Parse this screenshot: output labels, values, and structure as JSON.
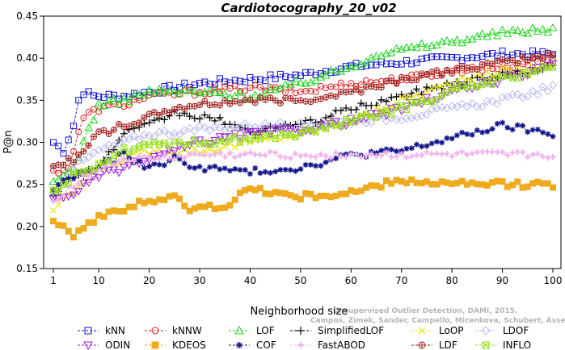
{
  "chart_data": {
    "type": "line",
    "title": "Cardiotocography_20_v02",
    "xlabel": "Neighborhood size",
    "ylabel": "P@n",
    "xlim": [
      1,
      100
    ],
    "ylim": [
      0.15,
      0.45
    ],
    "xticks": [
      1,
      10,
      20,
      30,
      40,
      50,
      60,
      70,
      80,
      90,
      100
    ],
    "yticks": [
      0.15,
      0.2,
      0.25,
      0.3,
      0.35,
      0.4,
      0.45
    ],
    "grid": false,
    "legend_position": "bottom",
    "watermark_lines": [
      "Unsupervised Outlier Detection, DAMI, 2015.",
      "Campos, Zimek, Sander, Campello, Micenkova, Schubert, Assent, Houle"
    ],
    "series": [
      {
        "name": "kNN",
        "color": "#1414d2",
        "marker": "square",
        "anchors": [
          [
            1,
            0.3
          ],
          [
            3,
            0.29
          ],
          [
            5,
            0.32
          ],
          [
            6,
            0.35
          ],
          [
            7,
            0.36
          ],
          [
            9,
            0.355
          ],
          [
            15,
            0.355
          ],
          [
            20,
            0.36
          ],
          [
            30,
            0.37
          ],
          [
            40,
            0.375
          ],
          [
            50,
            0.38
          ],
          [
            60,
            0.39
          ],
          [
            70,
            0.395
          ],
          [
            80,
            0.4
          ],
          [
            90,
            0.405
          ],
          [
            100,
            0.405
          ]
        ]
      },
      {
        "name": "kNNW",
        "color": "#dc1e1e",
        "marker": "circle",
        "anchors": [
          [
            1,
            0.265
          ],
          [
            4,
            0.27
          ],
          [
            7,
            0.33
          ],
          [
            10,
            0.34
          ],
          [
            15,
            0.345
          ],
          [
            20,
            0.355
          ],
          [
            30,
            0.36
          ],
          [
            40,
            0.365
          ],
          [
            50,
            0.36
          ],
          [
            60,
            0.37
          ],
          [
            70,
            0.375
          ],
          [
            80,
            0.385
          ],
          [
            90,
            0.39
          ],
          [
            100,
            0.4
          ]
        ]
      },
      {
        "name": "LOF",
        "color": "#1ed21e",
        "marker": "triangle-up",
        "anchors": [
          [
            1,
            0.25
          ],
          [
            5,
            0.27
          ],
          [
            10,
            0.345
          ],
          [
            15,
            0.35
          ],
          [
            20,
            0.36
          ],
          [
            30,
            0.36
          ],
          [
            40,
            0.355
          ],
          [
            50,
            0.37
          ],
          [
            60,
            0.39
          ],
          [
            65,
            0.405
          ],
          [
            70,
            0.41
          ],
          [
            80,
            0.42
          ],
          [
            90,
            0.43
          ],
          [
            100,
            0.435
          ]
        ]
      },
      {
        "name": "SimplifiedLOF",
        "color": "#000000",
        "marker": "plus",
        "anchors": [
          [
            1,
            0.24
          ],
          [
            5,
            0.26
          ],
          [
            10,
            0.27
          ],
          [
            15,
            0.31
          ],
          [
            20,
            0.32
          ],
          [
            25,
            0.335
          ],
          [
            30,
            0.33
          ],
          [
            35,
            0.325
          ],
          [
            40,
            0.31
          ],
          [
            45,
            0.32
          ],
          [
            50,
            0.32
          ],
          [
            55,
            0.33
          ],
          [
            60,
            0.34
          ],
          [
            70,
            0.355
          ],
          [
            80,
            0.37
          ],
          [
            90,
            0.38
          ],
          [
            100,
            0.39
          ]
        ]
      },
      {
        "name": "LoOP",
        "color": "#e6e61e",
        "marker": "x",
        "anchors": [
          [
            1,
            0.22
          ],
          [
            5,
            0.24
          ],
          [
            10,
            0.27
          ],
          [
            15,
            0.28
          ],
          [
            20,
            0.29
          ],
          [
            30,
            0.29
          ],
          [
            40,
            0.3
          ],
          [
            50,
            0.31
          ],
          [
            60,
            0.325
          ],
          [
            70,
            0.35
          ],
          [
            80,
            0.37
          ],
          [
            90,
            0.385
          ],
          [
            100,
            0.39
          ]
        ]
      },
      {
        "name": "LDOF",
        "color": "#b9b9eb",
        "marker": "diamond",
        "anchors": [
          [
            1,
            0.24
          ],
          [
            5,
            0.27
          ],
          [
            10,
            0.29
          ],
          [
            20,
            0.31
          ],
          [
            30,
            0.315
          ],
          [
            40,
            0.32
          ],
          [
            50,
            0.32
          ],
          [
            60,
            0.325
          ],
          [
            70,
            0.33
          ],
          [
            80,
            0.34
          ],
          [
            90,
            0.35
          ],
          [
            100,
            0.365
          ]
        ]
      },
      {
        "name": "ODIN",
        "color": "#9b1edc",
        "marker": "triangle-down",
        "anchors": [
          [
            1,
            0.23
          ],
          [
            5,
            0.24
          ],
          [
            10,
            0.26
          ],
          [
            15,
            0.27
          ],
          [
            20,
            0.28
          ],
          [
            25,
            0.29
          ],
          [
            30,
            0.3
          ],
          [
            40,
            0.31
          ],
          [
            50,
            0.315
          ],
          [
            60,
            0.325
          ],
          [
            70,
            0.34
          ],
          [
            80,
            0.36
          ],
          [
            90,
            0.375
          ],
          [
            100,
            0.39
          ]
        ]
      },
      {
        "name": "KDEOS",
        "color": "#f0aa1e",
        "marker": "square-filled",
        "anchors": [
          [
            1,
            0.21
          ],
          [
            3,
            0.2
          ],
          [
            5,
            0.19
          ],
          [
            8,
            0.205
          ],
          [
            10,
            0.21
          ],
          [
            15,
            0.22
          ],
          [
            18,
            0.23
          ],
          [
            20,
            0.23
          ],
          [
            25,
            0.235
          ],
          [
            28,
            0.22
          ],
          [
            35,
            0.225
          ],
          [
            40,
            0.245
          ],
          [
            45,
            0.24
          ],
          [
            50,
            0.235
          ],
          [
            60,
            0.24
          ],
          [
            70,
            0.255
          ],
          [
            80,
            0.25
          ],
          [
            90,
            0.25
          ],
          [
            100,
            0.25
          ]
        ]
      },
      {
        "name": "COF",
        "color": "#14148c",
        "marker": "star",
        "anchors": [
          [
            1,
            0.245
          ],
          [
            5,
            0.26
          ],
          [
            10,
            0.27
          ],
          [
            15,
            0.285
          ],
          [
            20,
            0.27
          ],
          [
            25,
            0.28
          ],
          [
            30,
            0.27
          ],
          [
            40,
            0.265
          ],
          [
            50,
            0.27
          ],
          [
            60,
            0.285
          ],
          [
            70,
            0.29
          ],
          [
            80,
            0.305
          ],
          [
            90,
            0.32
          ],
          [
            95,
            0.315
          ],
          [
            100,
            0.31
          ]
        ]
      },
      {
        "name": "FastABOD",
        "color": "#f0b4eb",
        "marker": "plus-bold",
        "anchors": [
          [
            1,
            0.23
          ],
          [
            5,
            0.25
          ],
          [
            10,
            0.27
          ],
          [
            15,
            0.28
          ],
          [
            20,
            0.28
          ],
          [
            30,
            0.285
          ],
          [
            50,
            0.285
          ],
          [
            70,
            0.285
          ],
          [
            90,
            0.285
          ],
          [
            100,
            0.285
          ]
        ]
      },
      {
        "name": "LDF",
        "color": "#a01e1e",
        "marker": "circle-cross",
        "anchors": [
          [
            1,
            0.27
          ],
          [
            5,
            0.28
          ],
          [
            10,
            0.31
          ],
          [
            15,
            0.32
          ],
          [
            20,
            0.33
          ],
          [
            25,
            0.34
          ],
          [
            30,
            0.345
          ],
          [
            40,
            0.35
          ],
          [
            50,
            0.35
          ],
          [
            60,
            0.36
          ],
          [
            70,
            0.375
          ],
          [
            80,
            0.385
          ],
          [
            90,
            0.395
          ],
          [
            100,
            0.405
          ]
        ]
      },
      {
        "name": "INFLO",
        "color": "#96dc1e",
        "marker": "square-x",
        "anchors": [
          [
            1,
            0.24
          ],
          [
            5,
            0.26
          ],
          [
            10,
            0.275
          ],
          [
            15,
            0.29
          ],
          [
            20,
            0.3
          ],
          [
            30,
            0.3
          ],
          [
            40,
            0.305
          ],
          [
            50,
            0.31
          ],
          [
            60,
            0.325
          ],
          [
            70,
            0.34
          ],
          [
            80,
            0.36
          ],
          [
            90,
            0.375
          ],
          [
            100,
            0.39
          ]
        ]
      }
    ]
  }
}
